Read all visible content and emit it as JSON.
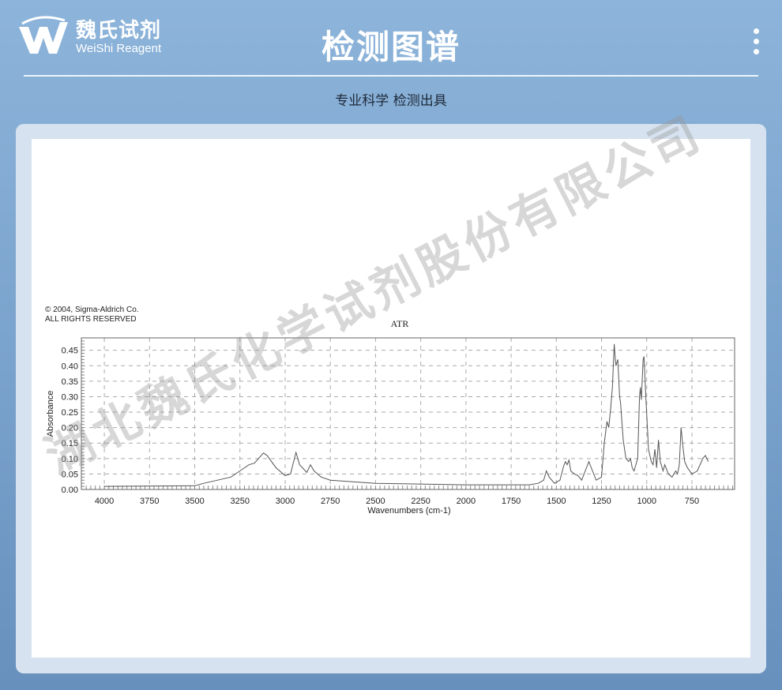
{
  "header": {
    "logo_cn": "魏氏试剂",
    "logo_en": "WeiShi Reagent",
    "title": "检测图谱",
    "subtitle": "专业科学  检测出具",
    "menu_icon": "more-vertical-icon"
  },
  "watermark": "湖北魏氏化学试剂股份有限公司",
  "colors": {
    "background": "#7aa3cd",
    "card": "#d6e2ef",
    "line": "#555555"
  },
  "chart_data": {
    "type": "line",
    "copyright_line1": "© 2004, Sigma-Aldrich Co.",
    "copyright_line2": "ALL RIGHTS RESERVED",
    "title": "ATR",
    "xlabel": "Wavenumbers (cm-1)",
    "ylabel": "Absorbance",
    "xlim": [
      4127,
      514
    ],
    "ylim": [
      0,
      0.49
    ],
    "x_ticks": [
      4000,
      3750,
      3500,
      3250,
      3000,
      2750,
      2500,
      2250,
      2000,
      1750,
      1500,
      1250,
      1000,
      750
    ],
    "y_ticks": [
      "0.00",
      "0.05",
      "0.10",
      "0.15",
      "0.20",
      "0.25",
      "0.30",
      "0.35",
      "0.40",
      "0.45"
    ],
    "grid": true,
    "series": [
      {
        "x": [
          4000,
          3500,
          3450,
          3300,
          3250,
          3200,
          3170,
          3120,
          3100,
          3050,
          3000,
          2970,
          2940,
          2920,
          2880,
          2860,
          2840,
          2800,
          2750,
          2500,
          2000,
          1650,
          1600,
          1570,
          1555,
          1540,
          1510,
          1480,
          1460,
          1450,
          1440,
          1430,
          1420,
          1400,
          1380,
          1360,
          1340,
          1320,
          1300,
          1280,
          1265,
          1250,
          1235,
          1220,
          1210,
          1200,
          1190,
          1180,
          1175,
          1170,
          1160,
          1155,
          1150,
          1145,
          1130,
          1115,
          1100,
          1090,
          1080,
          1070,
          1050,
          1040,
          1035,
          1030,
          1020,
          1015,
          1005,
          990,
          975,
          965,
          955,
          945,
          935,
          925,
          910,
          900,
          880,
          860,
          840,
          830,
          820,
          810,
          800,
          790,
          775,
          750,
          720,
          690,
          675,
          660
        ],
        "y": [
          0.01,
          0.012,
          0.02,
          0.04,
          0.06,
          0.08,
          0.085,
          0.118,
          0.11,
          0.07,
          0.045,
          0.05,
          0.12,
          0.08,
          0.055,
          0.08,
          0.06,
          0.04,
          0.03,
          0.02,
          0.015,
          0.015,
          0.02,
          0.03,
          0.06,
          0.04,
          0.02,
          0.03,
          0.075,
          0.09,
          0.08,
          0.095,
          0.06,
          0.05,
          0.045,
          0.03,
          0.06,
          0.09,
          0.06,
          0.03,
          0.035,
          0.04,
          0.15,
          0.22,
          0.2,
          0.26,
          0.33,
          0.47,
          0.43,
          0.4,
          0.42,
          0.36,
          0.3,
          0.28,
          0.16,
          0.1,
          0.09,
          0.1,
          0.07,
          0.06,
          0.1,
          0.3,
          0.33,
          0.29,
          0.42,
          0.43,
          0.3,
          0.13,
          0.09,
          0.08,
          0.13,
          0.07,
          0.16,
          0.09,
          0.06,
          0.08,
          0.05,
          0.04,
          0.06,
          0.05,
          0.08,
          0.2,
          0.14,
          0.09,
          0.07,
          0.05,
          0.06,
          0.1,
          0.11,
          0.09
        ]
      }
    ]
  }
}
